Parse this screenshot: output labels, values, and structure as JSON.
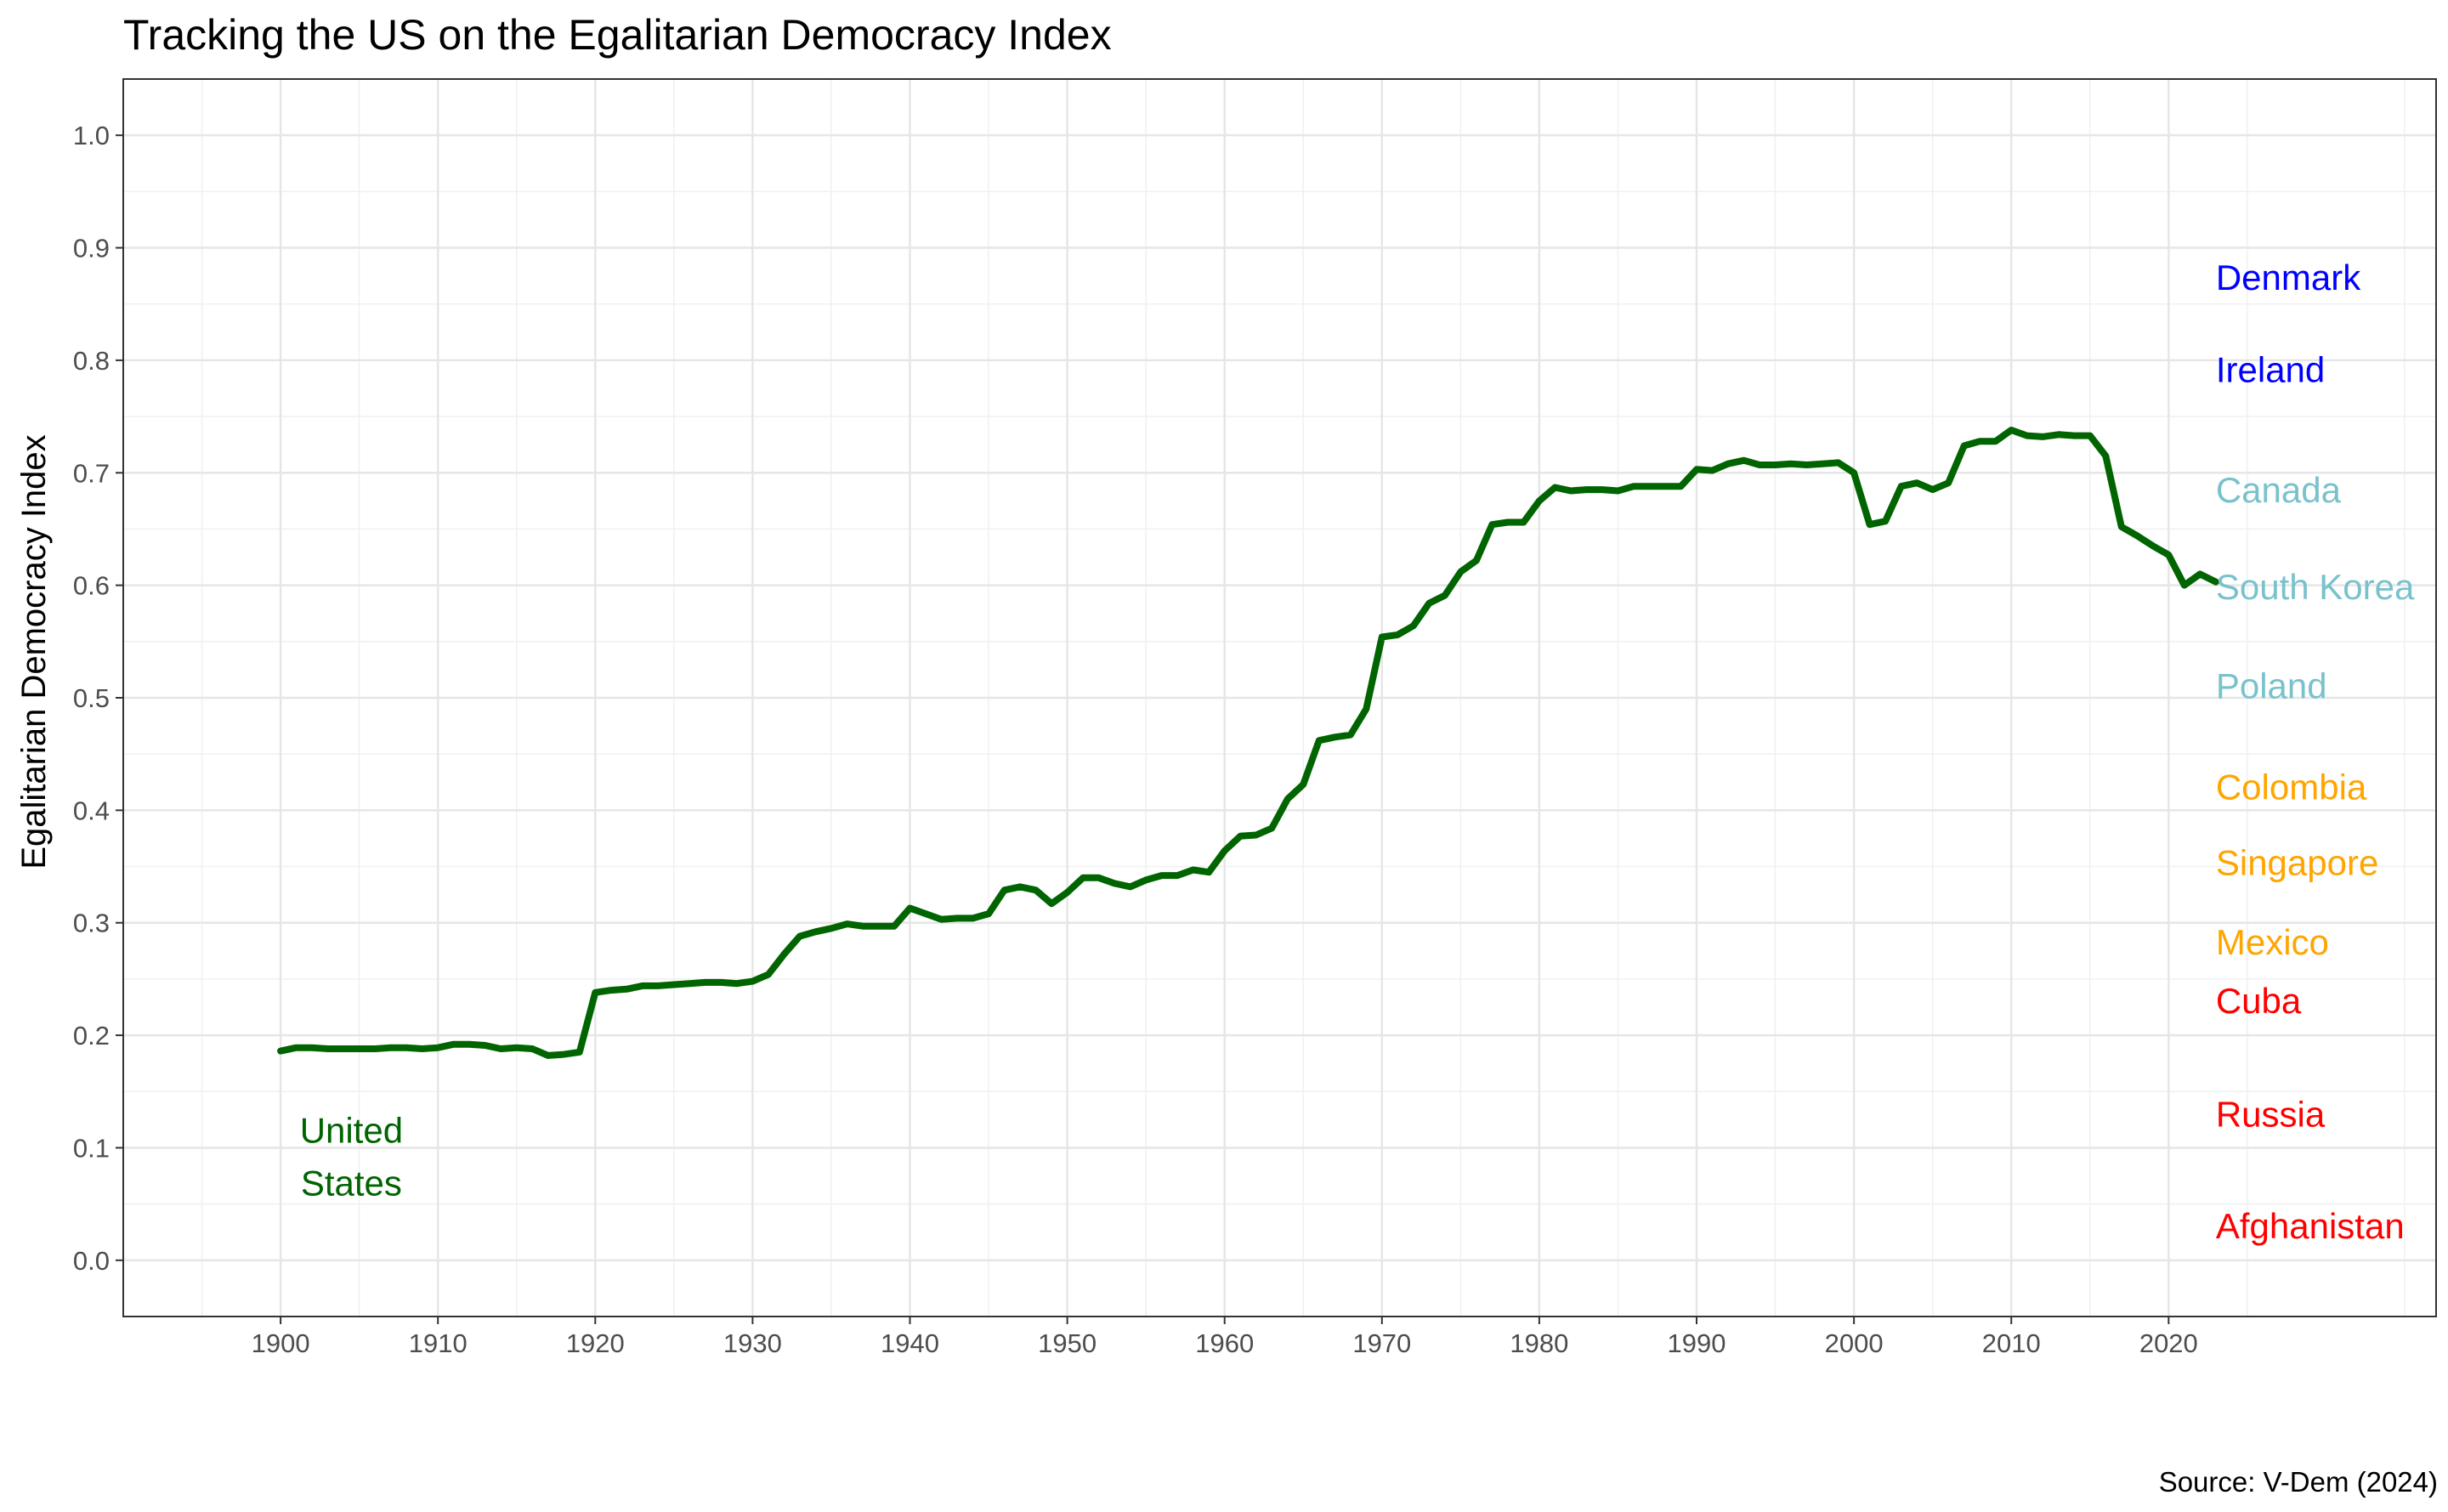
{
  "chart_data": {
    "type": "line",
    "title": "Tracking the US on the Egalitarian Democracy Index",
    "xlabel": "",
    "ylabel": "Egalitarian Democracy Index",
    "caption": "Source: V-Dem (2024)",
    "xlim": [
      1890,
      2037
    ],
    "ylim": [
      -0.05,
      1.05
    ],
    "x_ticks": [
      1900,
      1910,
      1920,
      1930,
      1940,
      1950,
      1960,
      1970,
      1980,
      1990,
      2000,
      2010,
      2020
    ],
    "y_ticks": [
      0.0,
      0.1,
      0.2,
      0.3,
      0.4,
      0.5,
      0.6,
      0.7,
      0.8,
      0.9,
      1.0
    ],
    "y_tick_labels": [
      "0.0",
      "0.1",
      "0.2",
      "0.3",
      "0.4",
      "0.5",
      "0.6",
      "0.7",
      "0.8",
      "0.9",
      "1.0"
    ],
    "grid": true,
    "legend": "none",
    "series": [
      {
        "name": "United States",
        "label_lines": [
          "United",
          "States"
        ],
        "color": "#006400",
        "x": [
          1900,
          1901,
          1902,
          1903,
          1904,
          1905,
          1906,
          1907,
          1908,
          1909,
          1910,
          1911,
          1912,
          1913,
          1914,
          1915,
          1916,
          1917,
          1918,
          1919,
          1920,
          1921,
          1922,
          1923,
          1924,
          1925,
          1926,
          1927,
          1928,
          1929,
          1930,
          1931,
          1932,
          1933,
          1934,
          1935,
          1936,
          1937,
          1938,
          1939,
          1940,
          1941,
          1942,
          1943,
          1944,
          1945,
          1946,
          1947,
          1948,
          1949,
          1950,
          1951,
          1952,
          1953,
          1954,
          1955,
          1956,
          1957,
          1958,
          1959,
          1960,
          1961,
          1962,
          1963,
          1964,
          1965,
          1966,
          1967,
          1968,
          1969,
          1970,
          1971,
          1972,
          1973,
          1974,
          1975,
          1976,
          1977,
          1978,
          1979,
          1980,
          1981,
          1982,
          1983,
          1984,
          1985,
          1986,
          1987,
          1988,
          1989,
          1990,
          1991,
          1992,
          1993,
          1994,
          1995,
          1996,
          1997,
          1998,
          1999,
          2000,
          2001,
          2002,
          2003,
          2004,
          2005,
          2006,
          2007,
          2008,
          2009,
          2010,
          2011,
          2012,
          2013,
          2014,
          2015,
          2016,
          2017,
          2018,
          2019,
          2020,
          2021,
          2022,
          2023
        ],
        "y": [
          0.186,
          0.189,
          0.189,
          0.188,
          0.188,
          0.188,
          0.188,
          0.189,
          0.189,
          0.188,
          0.189,
          0.192,
          0.192,
          0.191,
          0.188,
          0.189,
          0.188,
          0.182,
          0.183,
          0.185,
          0.238,
          0.24,
          0.241,
          0.244,
          0.244,
          0.245,
          0.246,
          0.247,
          0.247,
          0.246,
          0.248,
          0.254,
          0.272,
          0.288,
          0.292,
          0.295,
          0.299,
          0.297,
          0.297,
          0.297,
          0.313,
          0.308,
          0.303,
          0.304,
          0.304,
          0.308,
          0.329,
          0.332,
          0.329,
          0.317,
          0.327,
          0.34,
          0.34,
          0.335,
          0.332,
          0.338,
          0.342,
          0.342,
          0.347,
          0.345,
          0.364,
          0.377,
          0.378,
          0.384,
          0.41,
          0.423,
          0.462,
          0.465,
          0.467,
          0.49,
          0.554,
          0.556,
          0.564,
          0.584,
          0.591,
          0.612,
          0.622,
          0.654,
          0.656,
          0.656,
          0.675,
          0.687,
          0.684,
          0.685,
          0.685,
          0.684,
          0.688,
          0.688,
          0.688,
          0.688,
          0.703,
          0.702,
          0.708,
          0.711,
          0.707,
          0.707,
          0.708,
          0.707,
          0.708,
          0.709,
          0.7,
          0.654,
          0.657,
          0.688,
          0.691,
          0.685,
          0.691,
          0.724,
          0.728,
          0.728,
          0.738,
          0.733,
          0.732,
          0.734,
          0.733,
          0.733,
          0.715,
          0.652,
          0.644,
          0.635,
          0.627,
          0.6,
          0.61,
          0.603
        ]
      }
    ],
    "reference_labels": [
      {
        "name": "Denmark",
        "y": 0.874,
        "color": "#0000ff"
      },
      {
        "name": "Ireland",
        "y": 0.792,
        "color": "#0000ff"
      },
      {
        "name": "Canada",
        "y": 0.685,
        "color": "#79c2cc"
      },
      {
        "name": "South Korea",
        "y": 0.599,
        "color": "#79c2cc"
      },
      {
        "name": "Poland",
        "y": 0.511,
        "color": "#79c2cc"
      },
      {
        "name": "Colombia",
        "y": 0.421,
        "color": "#ffa500"
      },
      {
        "name": "Singapore",
        "y": 0.354,
        "color": "#ffa500"
      },
      {
        "name": "Mexico",
        "y": 0.283,
        "color": "#ffa500"
      },
      {
        "name": "Cuba",
        "y": 0.231,
        "color": "#ff0000"
      },
      {
        "name": "Russia",
        "y": 0.13,
        "color": "#ff0000"
      },
      {
        "name": "Afghanistan",
        "y": 0.031,
        "color": "#ff0000"
      }
    ]
  }
}
